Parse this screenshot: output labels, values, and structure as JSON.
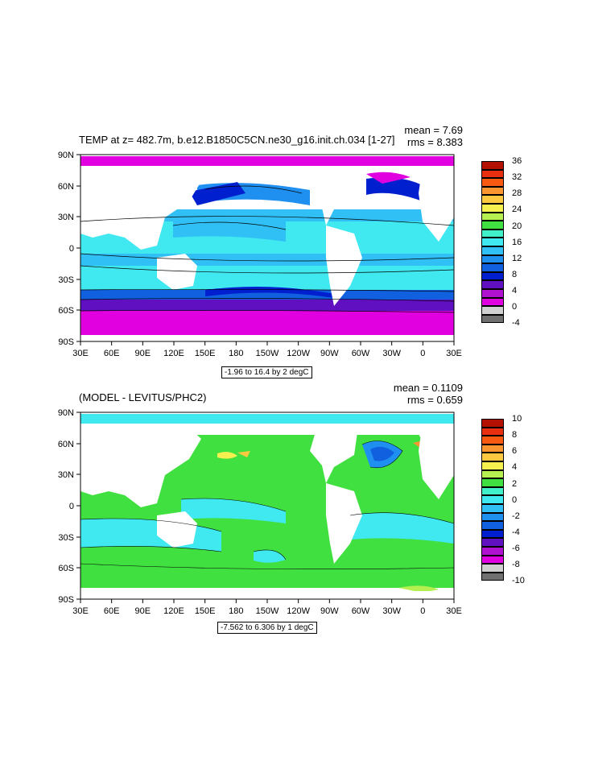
{
  "top": {
    "title": "TEMP at z= 482.7m, b.e12.B1850C5CN.ne30_g16.init.ch.034 [1-27]",
    "mean": "mean = 7.69",
    "rms": "rms = 8.383",
    "info": "-1.96 to 16.4 by 2 degC",
    "colorbar": {
      "labels": [
        "36",
        "32",
        "28",
        "24",
        "20",
        "16",
        "12",
        "8",
        "4",
        "0",
        "-4"
      ],
      "colors": [
        "#b21000",
        "#e83010",
        "#f55a10",
        "#fb9530",
        "#fbc840",
        "#f5f050",
        "#b5f050",
        "#40e040",
        "#40f0c8",
        "#40e8f0",
        "#30c0f5",
        "#2090f0",
        "#1060e0",
        "#0020d0",
        "#6010c0",
        "#b010d0",
        "#e000e0",
        "#d0d0d0",
        "#707070"
      ]
    }
  },
  "bottom": {
    "title": "(MODEL - LEVITUS/PHC2)",
    "mean": "mean = 0.1109",
    "rms": "rms = 0.659",
    "info": "-7.562 to 6.306 by 1 degC",
    "colorbar": {
      "labels": [
        "10",
        "8",
        "6",
        "4",
        "2",
        "0",
        "-2",
        "-4",
        "-6",
        "-8",
        "-10"
      ],
      "colors": [
        "#b21000",
        "#e83010",
        "#f55a10",
        "#fb9530",
        "#fbc840",
        "#f5f050",
        "#b5f050",
        "#40e040",
        "#40f0c8",
        "#40e8f0",
        "#30c0f5",
        "#2090f0",
        "#1060e0",
        "#0020d0",
        "#6010c0",
        "#b010d0",
        "#e000e0",
        "#d0d0d0",
        "#707070"
      ]
    }
  },
  "axes": {
    "lat_ticks": [
      "90N",
      "60N",
      "30N",
      "0",
      "30S",
      "60S",
      "90S"
    ],
    "lon_ticks": [
      "30E",
      "60E",
      "90E",
      "120E",
      "150E",
      "180",
      "150W",
      "120W",
      "90W",
      "60W",
      "30W",
      "0",
      "30E"
    ]
  },
  "chart_data": [
    {
      "type": "heatmap",
      "title": "TEMP at z= 482.7m, b.e12.B1850C5CN.ne30_g16.init.ch.034 [1-27]",
      "x": [
        "30E",
        "60E",
        "90E",
        "120E",
        "150E",
        "180",
        "150W",
        "120W",
        "90W",
        "60W",
        "30W",
        "0",
        "30E"
      ],
      "y": [
        "90N",
        "60N",
        "30N",
        "0",
        "30S",
        "60S",
        "90S"
      ],
      "mean": 7.69,
      "rms": 8.383,
      "contour_range": [
        -1.96,
        16.4
      ],
      "contour_interval": 2,
      "units": "degC",
      "colorbar_range": [
        -4,
        36
      ],
      "colorbar_ticks": [
        36,
        32,
        28,
        24,
        20,
        16,
        12,
        8,
        4,
        0,
        -4
      ]
    },
    {
      "type": "heatmap",
      "title": "(MODEL - LEVITUS/PHC2)",
      "x": [
        "30E",
        "60E",
        "90E",
        "120E",
        "150E",
        "180",
        "150W",
        "120W",
        "90W",
        "60W",
        "30W",
        "0",
        "30E"
      ],
      "y": [
        "90N",
        "60N",
        "30N",
        "0",
        "30S",
        "60S",
        "90S"
      ],
      "mean": 0.1109,
      "rms": 0.659,
      "contour_range": [
        -7.562,
        6.306
      ],
      "contour_interval": 1,
      "units": "degC",
      "colorbar_range": [
        -10,
        10
      ],
      "colorbar_ticks": [
        10,
        8,
        6,
        4,
        2,
        0,
        -2,
        -4,
        -6,
        -8,
        -10
      ]
    }
  ]
}
